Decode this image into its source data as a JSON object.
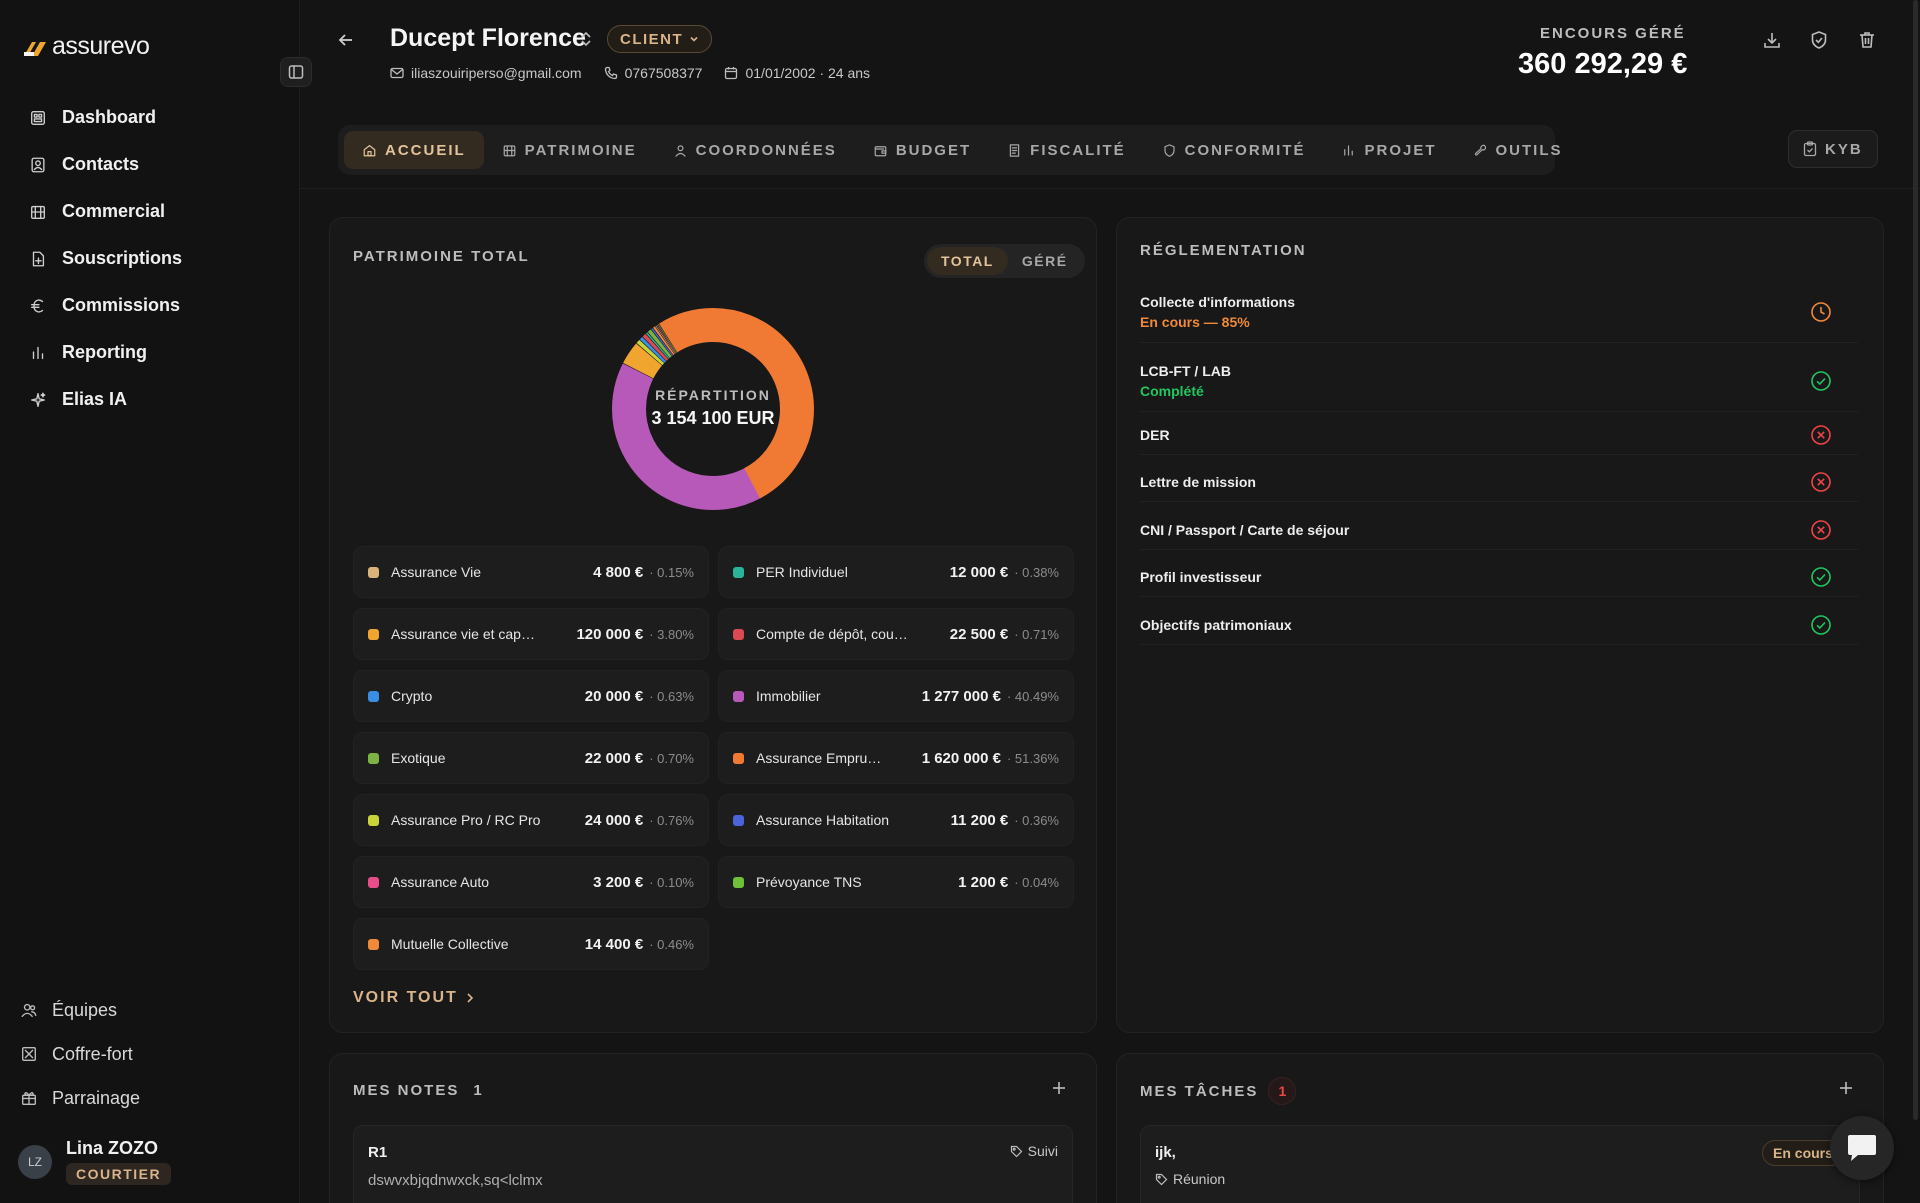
{
  "app": {
    "logo_text": "assurevo"
  },
  "sidebar": {
    "items": [
      {
        "label": "Dashboard",
        "icon": "dashboard-icon"
      },
      {
        "label": "Contacts",
        "icon": "contacts-icon"
      },
      {
        "label": "Commercial",
        "icon": "building-icon"
      },
      {
        "label": "Souscriptions",
        "icon": "file-plus-icon"
      },
      {
        "label": "Commissions",
        "icon": "euro-icon"
      },
      {
        "label": "Reporting",
        "icon": "bar-chart-icon"
      },
      {
        "label": "Elias IA",
        "icon": "sparkles-icon"
      }
    ],
    "bottom_items": [
      {
        "label": "Équipes",
        "icon": "users-icon"
      },
      {
        "label": "Coffre-fort",
        "icon": "vault-icon"
      },
      {
        "label": "Parrainage",
        "icon": "gift-icon"
      }
    ],
    "user": {
      "initials": "LZ",
      "name": "Lina ZOZO",
      "role": "COURTIER"
    }
  },
  "header": {
    "client_name": "Ducept Florence",
    "badge": "CLIENT",
    "email": "iliaszouiriperso@gmail.com",
    "phone": "0767508377",
    "birth": "01/01/2002 · 24 ans",
    "aum_label": "ENCOURS GÉRÉ",
    "aum_value": "360 292,29 €"
  },
  "tabs": [
    {
      "label": "ACCUEIL",
      "icon": "home-icon",
      "active": true
    },
    {
      "label": "PATRIMOINE",
      "icon": "building-icon",
      "active": false
    },
    {
      "label": "COORDONNÉES",
      "icon": "user-icon",
      "active": false
    },
    {
      "label": "BUDGET",
      "icon": "wallet-icon",
      "active": false
    },
    {
      "label": "FISCALITÉ",
      "icon": "receipt-icon",
      "active": false
    },
    {
      "label": "CONFORMITÉ",
      "icon": "shield-icon",
      "active": false
    },
    {
      "label": "PROJET",
      "icon": "bar-chart-icon",
      "active": false
    },
    {
      "label": "OUTILS",
      "icon": "wrench-icon",
      "active": false
    }
  ],
  "kyb_label": "KYB",
  "patrimoine": {
    "title": "PATRIMOINE TOTAL",
    "toggle": [
      "TOTAL",
      "GÉRÉ"
    ],
    "toggle_active": 0,
    "donut_label": "RÉPARTITION",
    "donut_total": "3 154 100 EUR",
    "voir_tout": "VOIR TOUT",
    "assets": [
      {
        "name": "Assurance Vie",
        "value": "4 800 €",
        "pct": "· 0.15%",
        "color": "#d9b37a",
        "share": 0.15
      },
      {
        "name": "PER Individuel",
        "value": "12 000 €",
        "pct": "· 0.38%",
        "color": "#2bb39a",
        "share": 0.38
      },
      {
        "name": "Assurance vie et cap…",
        "value": "120 000 €",
        "pct": "· 3.80%",
        "color": "#f0a62e",
        "share": 3.8
      },
      {
        "name": "Compte de dépôt, cou…",
        "value": "22 500 €",
        "pct": "· 0.71%",
        "color": "#d94a52",
        "share": 0.71
      },
      {
        "name": "Crypto",
        "value": "20 000 €",
        "pct": "· 0.63%",
        "color": "#3a8ee6",
        "share": 0.63
      },
      {
        "name": "Immobilier",
        "value": "1 277 000 €",
        "pct": "· 40.49%",
        "color": "#b659b8",
        "share": 40.49
      },
      {
        "name": "Exotique",
        "value": "22 000 €",
        "pct": "· 0.70%",
        "color": "#7cb342",
        "share": 0.7
      },
      {
        "name": "Assurance Empru…",
        "value": "1 620 000 €",
        "pct": "· 51.36%",
        "color": "#f07a33",
        "share": 51.36
      },
      {
        "name": "Assurance Pro / RC Pro",
        "value": "24 000 €",
        "pct": "· 0.76%",
        "color": "#c9d43a",
        "share": 0.76
      },
      {
        "name": "Assurance Habitation",
        "value": "11 200 €",
        "pct": "· 0.36%",
        "color": "#4a63d9",
        "share": 0.36
      },
      {
        "name": "Assurance Auto",
        "value": "3 200 €",
        "pct": "· 0.10%",
        "color": "#e84d8a",
        "share": 0.1
      },
      {
        "name": "Prévoyance TNS",
        "value": "1 200 €",
        "pct": "· 0.04%",
        "color": "#6fbf3a",
        "share": 0.04
      },
      {
        "name": "Mutuelle Collective",
        "value": "14 400 €",
        "pct": "· 0.46%",
        "color": "#f08a3a",
        "share": 0.46
      }
    ]
  },
  "reglementation": {
    "title": "RÉGLEMENTATION",
    "items": [
      {
        "name": "Collecte d'informations",
        "status": "En cours — 85%",
        "state": "pending"
      },
      {
        "name": "LCB-FT / LAB",
        "status": "Complété",
        "state": "done"
      },
      {
        "name": "DER",
        "status": "",
        "state": "missing"
      },
      {
        "name": "Lettre de mission",
        "status": "",
        "state": "missing"
      },
      {
        "name": "CNI / Passport / Carte de séjour",
        "status": "",
        "state": "missing"
      },
      {
        "name": "Profil investisseur",
        "status": "",
        "state": "done"
      },
      {
        "name": "Objectifs patrimoniaux",
        "status": "",
        "state": "done"
      }
    ],
    "colors": {
      "pending": "#f08a3a",
      "done": "#22c55e",
      "missing": "#ef4444"
    }
  },
  "notes": {
    "title": "MES NOTES",
    "count": "1",
    "items": [
      {
        "title": "R1",
        "tag": "Suivi",
        "body": "dswvxbjqdnwxck,sq<lclmx"
      }
    ]
  },
  "tasks": {
    "title": "MES TÂCHES",
    "count": "1",
    "items": [
      {
        "title": "ijk,",
        "tag": "Réunion",
        "status": "En cours"
      }
    ]
  }
}
